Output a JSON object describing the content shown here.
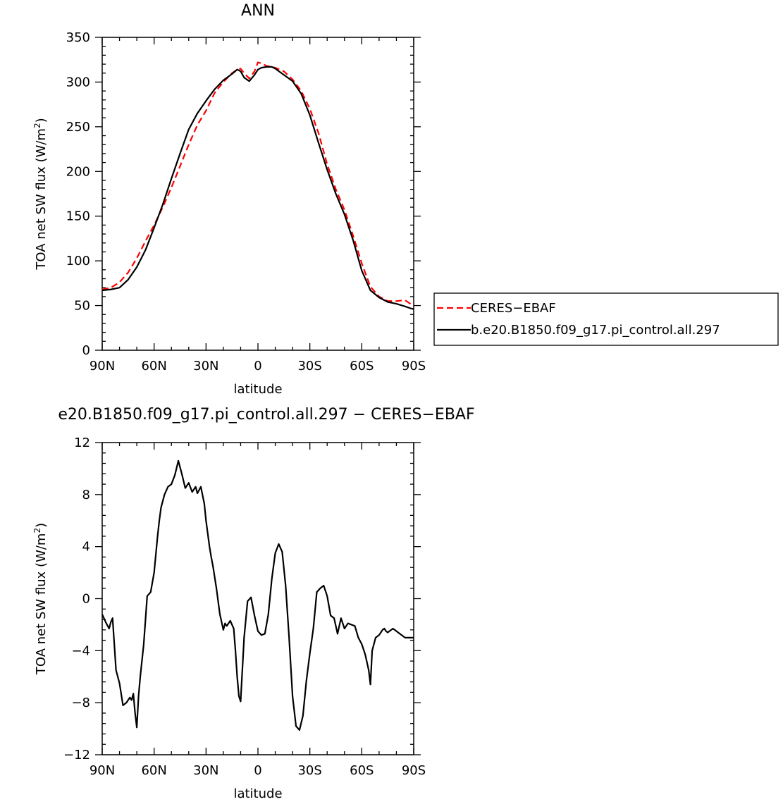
{
  "chart_data": [
    {
      "type": "line",
      "title": "ANN",
      "xlabel": "latitude",
      "ylabel": "TOA net SW flux (W/m²)",
      "ylabel_base": "TOA net SW flux (W/m",
      "ylabel_sup": "2",
      "ylabel_end": ")",
      "xlim": [
        90,
        -90
      ],
      "ylim": [
        0,
        350
      ],
      "xticks": [
        90,
        60,
        30,
        0,
        -30,
        -60,
        -90
      ],
      "xtick_labels": [
        "90N",
        "60N",
        "30N",
        "0",
        "30S",
        "60S",
        "90S"
      ],
      "yticks": [
        0,
        50,
        100,
        150,
        200,
        250,
        300,
        350
      ],
      "ytick_labels": [
        "0",
        "50",
        "100",
        "150",
        "200",
        "250",
        "300",
        "350"
      ],
      "legend": "right",
      "series": [
        {
          "name": "CERES−EBAF",
          "color": "#ff0000",
          "dash": "dashed",
          "x": [
            90,
            85,
            80,
            75,
            70,
            65,
            60,
            55,
            50,
            45,
            40,
            35,
            30,
            25,
            20,
            15,
            12,
            10,
            8,
            5,
            2,
            0,
            -2,
            -5,
            -8,
            -10,
            -15,
            -20,
            -25,
            -30,
            -35,
            -40,
            -45,
            -50,
            -55,
            -60,
            -65,
            -70,
            -75,
            -80,
            -85,
            -88,
            -90
          ],
          "y": [
            68,
            70,
            76,
            87,
            103,
            122,
            140,
            160,
            182,
            206,
            230,
            252,
            268,
            288,
            300,
            310,
            314,
            315,
            310,
            304,
            312,
            322,
            321,
            318,
            317,
            316,
            312,
            303,
            290,
            270,
            243,
            208,
            180,
            157,
            128,
            97,
            71,
            60,
            55,
            55,
            56,
            52,
            49
          ]
        },
        {
          "name": "b.e20.B1850.f09_g17.pi_control.all.297",
          "color": "#000000",
          "dash": "solid",
          "x": [
            90,
            85,
            80,
            75,
            70,
            65,
            60,
            55,
            50,
            45,
            40,
            35,
            30,
            25,
            20,
            15,
            12,
            10,
            8,
            5,
            2,
            0,
            -2,
            -5,
            -8,
            -10,
            -15,
            -20,
            -25,
            -30,
            -35,
            -40,
            -45,
            -50,
            -55,
            -60,
            -65,
            -70,
            -75,
            -80,
            -85,
            -88,
            -90
          ],
          "y": [
            67,
            68,
            70,
            79,
            93,
            112,
            137,
            163,
            192,
            220,
            247,
            265,
            279,
            292,
            302,
            309,
            314,
            312,
            305,
            301,
            308,
            314,
            316,
            317,
            317,
            315,
            308,
            301,
            287,
            263,
            232,
            202,
            175,
            152,
            123,
            89,
            67,
            59,
            54,
            52,
            49,
            47,
            46
          ]
        }
      ]
    },
    {
      "type": "line",
      "title": "e20.B1850.f09_g17.pi_control.all.297 − CERES−EBAF",
      "xlabel": "latitude",
      "ylabel": "TOA net SW flux (W/m²)",
      "ylabel_base": "TOA net SW flux (W/m",
      "ylabel_sup": "2",
      "ylabel_end": ")",
      "xlim": [
        90,
        -90
      ],
      "ylim": [
        -12,
        12
      ],
      "xticks": [
        90,
        60,
        30,
        0,
        -30,
        -60,
        -90
      ],
      "xtick_labels": [
        "90N",
        "60N",
        "30N",
        "0",
        "30S",
        "60S",
        "90S"
      ],
      "yticks": [
        -12,
        -8,
        -4,
        0,
        4,
        8,
        12
      ],
      "ytick_labels": [
        "−12",
        "−8",
        "−4",
        "0",
        "4",
        "8",
        "12"
      ],
      "series": [
        {
          "color": "#000000",
          "dash": "solid",
          "x": [
            90,
            88,
            86,
            85,
            84,
            82,
            80,
            78,
            77,
            76,
            74,
            73,
            72,
            71,
            70,
            69,
            68,
            66,
            64,
            62,
            60,
            58,
            57,
            56,
            54,
            52,
            50,
            48,
            46,
            44,
            42,
            40,
            38,
            36,
            35,
            33,
            31,
            30,
            28,
            27,
            26,
            24,
            22,
            20,
            19,
            18,
            16,
            14,
            13,
            12,
            11,
            10,
            8,
            6,
            4,
            2,
            0,
            -2,
            -4,
            -6,
            -8,
            -10,
            -12,
            -14,
            -16,
            -18,
            -20,
            -22,
            -24,
            -26,
            -28,
            -30,
            -32,
            -34,
            -36,
            -38,
            -40,
            -42,
            -44,
            -46,
            -48,
            -50,
            -52,
            -54,
            -56,
            -58,
            -60,
            -62,
            -64,
            -65,
            -66,
            -68,
            -69,
            -70,
            -71,
            -72,
            -73,
            -74,
            -75,
            -76,
            -78,
            -79,
            -80,
            -81,
            -82,
            -83,
            -84,
            -85,
            -86,
            -88,
            -89,
            -90
          ],
          "y": [
            -1.2,
            -1.8,
            -2.3,
            -1.8,
            -1.5,
            -5.5,
            -6.5,
            -8.2,
            -8.1,
            -8.0,
            -7.6,
            -7.8,
            -7.3,
            -8.8,
            -9.9,
            -7.5,
            -6.0,
            -3.5,
            0.2,
            0.5,
            2.0,
            4.8,
            6.0,
            7.0,
            8.0,
            8.6,
            8.8,
            9.5,
            10.6,
            9.6,
            8.5,
            8.9,
            8.2,
            8.6,
            8.1,
            8.6,
            7.3,
            6.0,
            4.0,
            3.2,
            2.5,
            0.8,
            -1.2,
            -2.4,
            -1.9,
            -2.1,
            -1.7,
            -2.3,
            -4.0,
            -6.0,
            -7.5,
            -7.9,
            -3.0,
            -0.2,
            0.1,
            -1.3,
            -2.5,
            -2.8,
            -2.7,
            -1.2,
            1.5,
            3.5,
            4.2,
            3.6,
            1.0,
            -3.0,
            -7.5,
            -9.8,
            -10.1,
            -9.0,
            -6.3,
            -4.2,
            -2.3,
            0.5,
            0.8,
            1.0,
            0.2,
            -1.3,
            -1.5,
            -2.7,
            -1.5,
            -2.3,
            -1.9,
            -2.0,
            -2.1,
            -3.0,
            -3.5,
            -4.3,
            -5.5,
            -6.6,
            -4.0,
            -3.0,
            -2.9,
            -2.8,
            -2.6,
            -2.4,
            -2.3,
            -2.5,
            -2.6,
            -2.5,
            -2.3,
            -2.4,
            -2.5,
            -2.6,
            -2.7,
            -2.8,
            -2.9,
            -3.0,
            -3.0,
            -3.0,
            -3.0,
            -3.0
          ]
        }
      ]
    }
  ]
}
